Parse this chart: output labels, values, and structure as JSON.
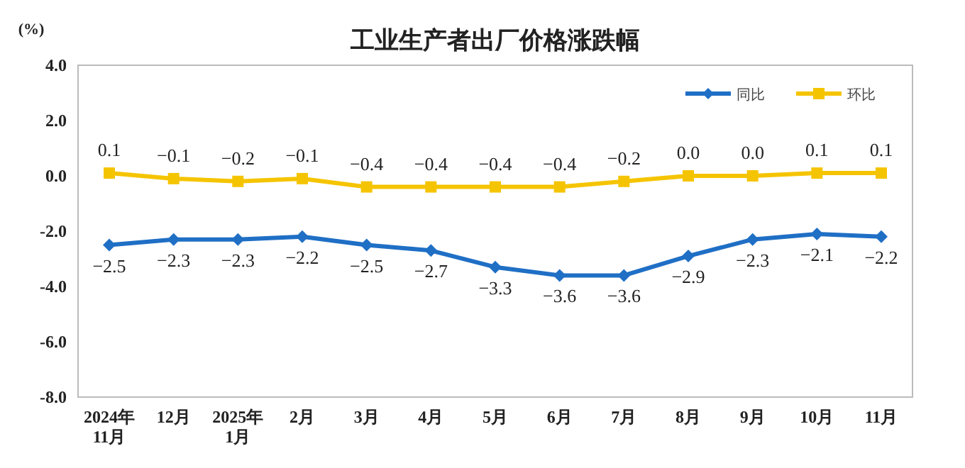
{
  "chart_data": {
    "type": "line",
    "title": "工业生产者出厂价格涨跌幅",
    "ylabel": "(%)",
    "categories": [
      "2024年\n11月",
      "12月",
      "2025年\n1月",
      "2月",
      "3月",
      "4月",
      "5月",
      "6月",
      "7月",
      "8月",
      "9月",
      "10月",
      "11月"
    ],
    "series": [
      {
        "name": "同比",
        "color": "#1f6fc5",
        "marker": "diamond",
        "values": [
          -2.5,
          -2.3,
          -2.3,
          -2.2,
          -2.5,
          -2.7,
          -3.3,
          -3.6,
          -3.6,
          -2.9,
          -2.3,
          -2.1,
          -2.2
        ],
        "value_labels": [
          "−2.5",
          "−2.3",
          "−2.3",
          "−2.2",
          "−2.5",
          "−2.7",
          "−3.3",
          "−3.6",
          "−3.6",
          "−2.9",
          "−2.3",
          "−2.1",
          "−2.2"
        ]
      },
      {
        "name": "环比",
        "color": "#f5c400",
        "marker": "square",
        "values": [
          0.1,
          -0.1,
          -0.2,
          -0.1,
          -0.4,
          -0.4,
          -0.4,
          -0.4,
          -0.2,
          0.0,
          0.0,
          0.1,
          0.1
        ],
        "value_labels": [
          "0.1",
          "−0.1",
          "−0.2",
          "−0.1",
          "−0.4",
          "−0.4",
          "−0.4",
          "−0.4",
          "−0.2",
          "0.0",
          "0.0",
          "0.1",
          "0.1"
        ]
      }
    ],
    "ylim": [
      -8,
      4
    ],
    "yticks": [
      {
        "value": 4,
        "label": "4.0"
      },
      {
        "value": 2,
        "label": "2.0"
      },
      {
        "value": 0,
        "label": "0.0"
      },
      {
        "value": -2,
        "label": "-2.0"
      },
      {
        "value": -4,
        "label": "-4.0"
      },
      {
        "value": -6,
        "label": "-6.0"
      },
      {
        "value": -8,
        "label": "-8.0"
      }
    ],
    "legend": "top right",
    "line_style": "solid"
  }
}
